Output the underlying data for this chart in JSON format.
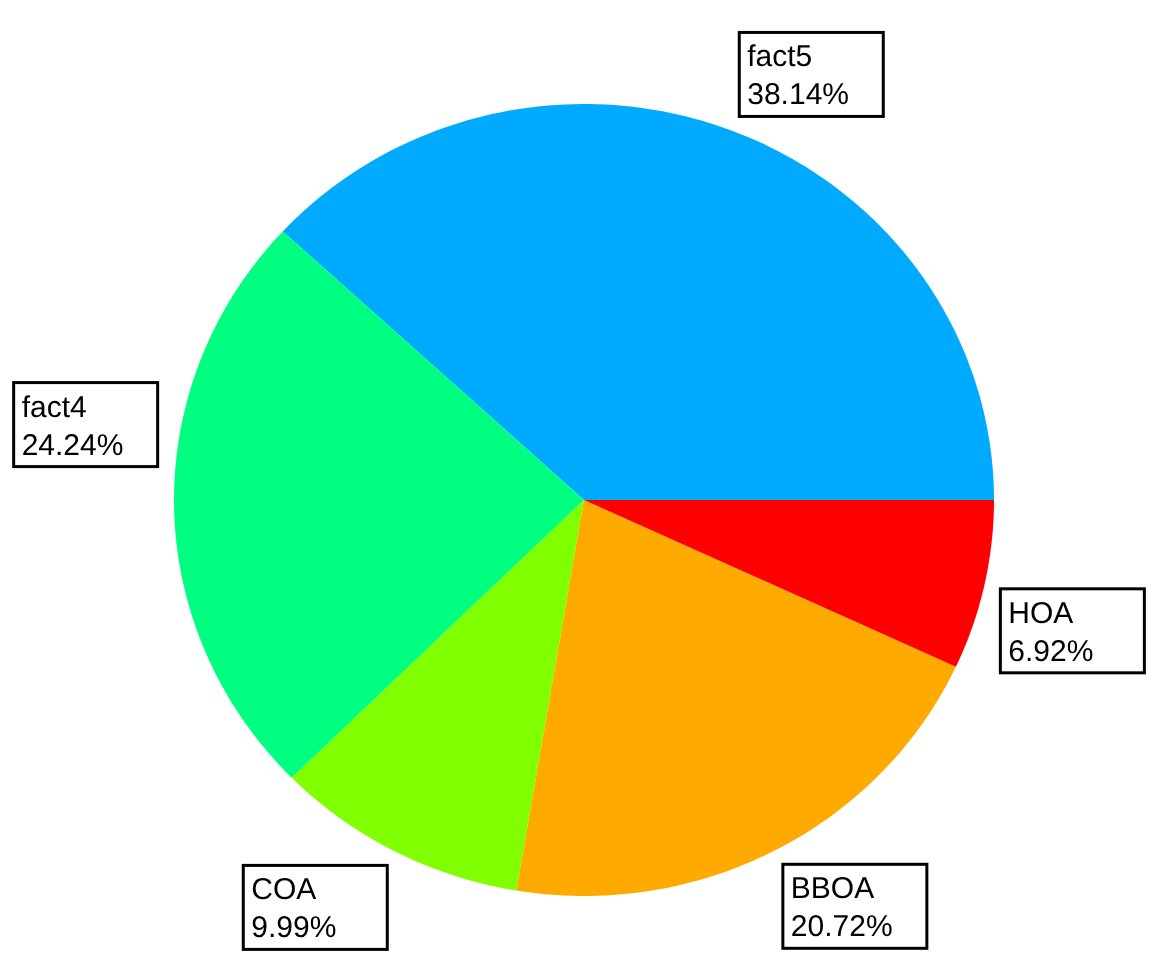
{
  "chart_data": {
    "type": "pie",
    "categories": [
      "fact5",
      "fact4",
      "COA",
      "BBOA",
      "HOA"
    ],
    "values": [
      38.14,
      24.24,
      9.99,
      20.72,
      6.92
    ],
    "colors": [
      "#00aaff",
      "#00ff80",
      "#80ff00",
      "#ffaa00",
      "#ff0000"
    ],
    "value_labels": [
      "38.14%",
      "24.24%",
      "9.99%",
      "20.72%",
      "6.92%"
    ]
  }
}
